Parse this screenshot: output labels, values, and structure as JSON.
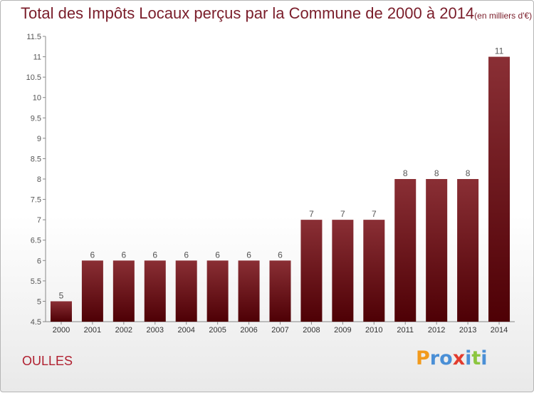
{
  "header": {
    "title": "Total des Impôts Locaux perçus par la Commune de 2000 à 2014",
    "subtitle": "(en milliers d'€)"
  },
  "footer": {
    "commune": "OULLES",
    "logo_letters": [
      "P",
      "r",
      "o",
      "x",
      "i",
      "t",
      "i"
    ],
    "logo_colors": [
      "#f29a1c",
      "#4a8fd6",
      "#4a8fd6",
      "#e23c2e",
      "#4a8fd6",
      "#8cc63f",
      "#4a8fd6"
    ]
  },
  "colors": {
    "bar_top": "#8a2f35",
    "bar_bottom": "#4e0005",
    "title": "#7a1d2a",
    "axis_text": "#555555"
  },
  "chart_data": {
    "type": "bar",
    "title": "Total des Impôts Locaux perçus par la Commune de 2000 à 2014",
    "subtitle": "(en milliers d'€)",
    "xlabel": "",
    "ylabel": "",
    "categories": [
      "2000",
      "2001",
      "2002",
      "2003",
      "2004",
      "2005",
      "2006",
      "2007",
      "2008",
      "2009",
      "2010",
      "2011",
      "2012",
      "2013",
      "2014"
    ],
    "values": [
      5,
      6,
      6,
      6,
      6,
      6,
      6,
      6,
      7,
      7,
      7,
      8,
      8,
      8,
      11
    ],
    "data_labels": [
      "5",
      "6",
      "6",
      "6",
      "6",
      "6",
      "6",
      "6",
      "7",
      "7",
      "7",
      "8",
      "8",
      "8",
      "11"
    ],
    "ylim": [
      4.5,
      11.5
    ],
    "yticks": [
      "4.5",
      "5",
      "5.5",
      "6",
      "6.5",
      "7",
      "7.5",
      "8",
      "8.5",
      "9",
      "9.5",
      "10",
      "10.5",
      "11",
      "11.5"
    ],
    "grid": false,
    "legend": "none"
  }
}
